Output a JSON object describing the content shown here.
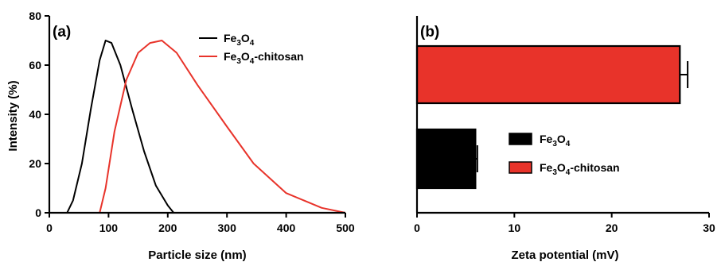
{
  "chart_data": [
    {
      "panel_label": "(a)",
      "type": "line",
      "xlabel": "Particle size (nm)",
      "ylabel": "Intensity (%)",
      "xlim": [
        0,
        500
      ],
      "ylim": [
        0,
        80
      ],
      "x_ticks": [
        0,
        100,
        200,
        300,
        400,
        500
      ],
      "y_ticks": [
        0,
        20,
        40,
        60,
        80
      ],
      "legend_position": "top-right",
      "series": [
        {
          "name": "Fe3O4",
          "color": "#000000",
          "points": [
            [
              30,
              0
            ],
            [
              40,
              5
            ],
            [
              55,
              20
            ],
            [
              70,
              42
            ],
            [
              85,
              62
            ],
            [
              95,
              70
            ],
            [
              105,
              69
            ],
            [
              120,
              60
            ],
            [
              140,
              42
            ],
            [
              160,
              25
            ],
            [
              180,
              11
            ],
            [
              200,
              3
            ],
            [
              210,
              0
            ]
          ]
        },
        {
          "name": "Fe3O4-chitosan",
          "color": "#e8332a",
          "points": [
            [
              85,
              0
            ],
            [
              95,
              10
            ],
            [
              110,
              33
            ],
            [
              130,
              54
            ],
            [
              150,
              65
            ],
            [
              170,
              69
            ],
            [
              190,
              70
            ],
            [
              215,
              65
            ],
            [
              250,
              52
            ],
            [
              300,
              35
            ],
            [
              345,
              20
            ],
            [
              400,
              8
            ],
            [
              460,
              2
            ],
            [
              500,
              0
            ]
          ]
        }
      ]
    },
    {
      "panel_label": "(b)",
      "type": "bar",
      "orientation": "horizontal",
      "xlabel": "Zeta potential (mV)",
      "ylabel": "",
      "xlim": [
        0,
        30
      ],
      "x_ticks": [
        0,
        10,
        20,
        30
      ],
      "legend_position": "center-right",
      "series": [
        {
          "name": "Fe3O4",
          "value": 6,
          "error": 0.2,
          "color": "#000000"
        },
        {
          "name": "Fe3O4-chitosan",
          "value": 27,
          "error": 0.8,
          "color": "#e8332a"
        }
      ]
    }
  ]
}
